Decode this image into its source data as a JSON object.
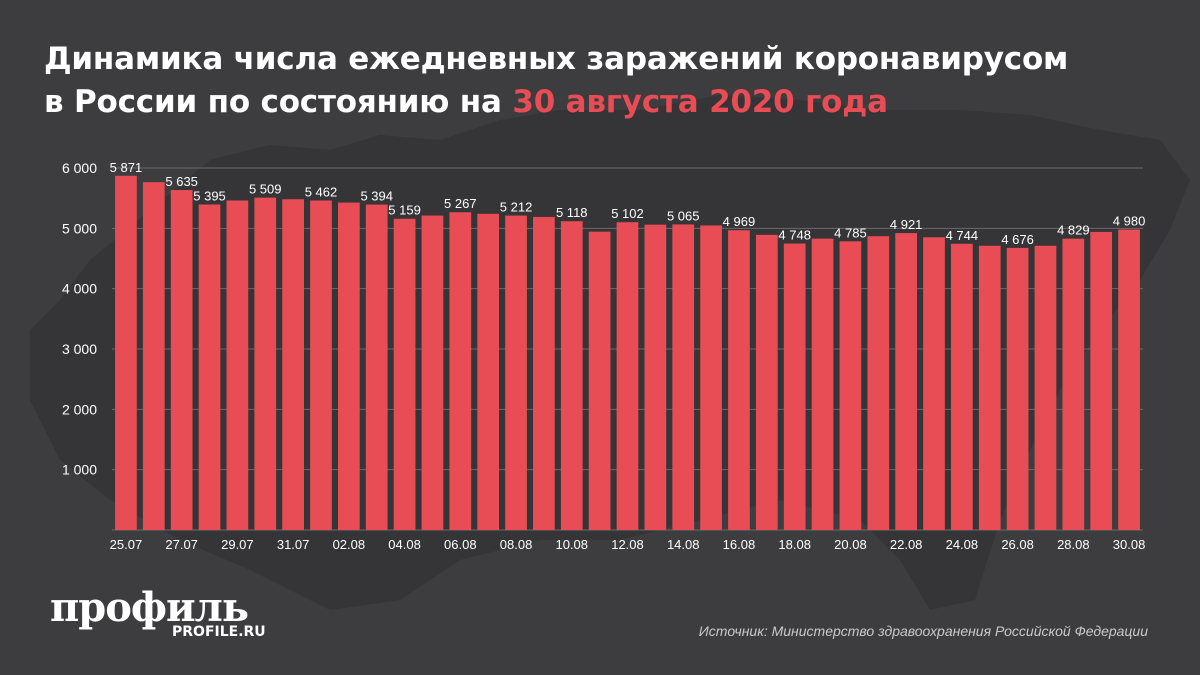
{
  "title": {
    "line1": "Динамика числа ежедневных заражений коронавирусом",
    "line2_prefix": "в России по состоянию на ",
    "line2_highlight": "30 августа 2020 года"
  },
  "colors": {
    "background": "#3d3c3f",
    "bar": "#e84c55",
    "highlight": "#e84c55",
    "grid": "#6a696c",
    "text": "#ffffff"
  },
  "chart_data": {
    "type": "bar",
    "categories": [
      "25.07",
      "26.07",
      "27.07",
      "28.07",
      "29.07",
      "30.07",
      "31.07",
      "01.08",
      "02.08",
      "03.08",
      "04.08",
      "05.08",
      "06.08",
      "07.08",
      "08.08",
      "09.08",
      "10.08",
      "11.08",
      "12.08",
      "13.08",
      "14.08",
      "15.08",
      "16.08",
      "17.08",
      "18.08",
      "19.08",
      "20.08",
      "21.08",
      "22.08",
      "23.08",
      "24.08",
      "25.08",
      "26.08",
      "27.08",
      "28.08",
      "29.08",
      "30.08"
    ],
    "tick_labels": [
      "25.07",
      "",
      "27.07",
      "",
      "29.07",
      "",
      "31.07",
      "",
      "02.08",
      "",
      "04.08",
      "",
      "06.08",
      "",
      "08.08",
      "",
      "10.08",
      "",
      "12.08",
      "",
      "14.08",
      "",
      "16.08",
      "",
      "18.08",
      "",
      "20.08",
      "",
      "22.08",
      "",
      "24.08",
      "",
      "26.08",
      "",
      "28.08",
      "",
      "30.08"
    ],
    "values": [
      5871,
      5765,
      5635,
      5395,
      5462,
      5509,
      5482,
      5462,
      5427,
      5394,
      5159,
      5212,
      5267,
      5241,
      5212,
      5189,
      5118,
      4945,
      5102,
      5061,
      5065,
      5048,
      4969,
      4892,
      4748,
      4829,
      4785,
      4870,
      4921,
      4852,
      4744,
      4711,
      4676,
      4711,
      4829,
      4941,
      4980
    ],
    "data_labels": [
      "5 871",
      "",
      "5 635",
      "5 395",
      "",
      "5 509",
      "",
      "5 462",
      "",
      "5 394",
      "5 159",
      "",
      "5 267",
      "",
      "5 212",
      "",
      "5 118",
      "",
      "5 102",
      "",
      "5 065",
      "",
      "4 969",
      "",
      "4 748",
      "",
      "4 785",
      "",
      "4 921",
      "",
      "4 744",
      "",
      "4 676",
      "",
      "4 829",
      "",
      "4 980"
    ],
    "y_ticks": [
      1000,
      2000,
      3000,
      4000,
      5000,
      6000
    ],
    "y_tick_labels": [
      "1 000",
      "2 000",
      "3 000",
      "4 000",
      "5 000",
      "6 000"
    ],
    "ylim": [
      0,
      6000
    ],
    "grid": true
  },
  "logo": {
    "main": "профиль",
    "sub": "PROFILE.RU"
  },
  "source": "Источник: Министерство здравоохранения Российской Федерации"
}
